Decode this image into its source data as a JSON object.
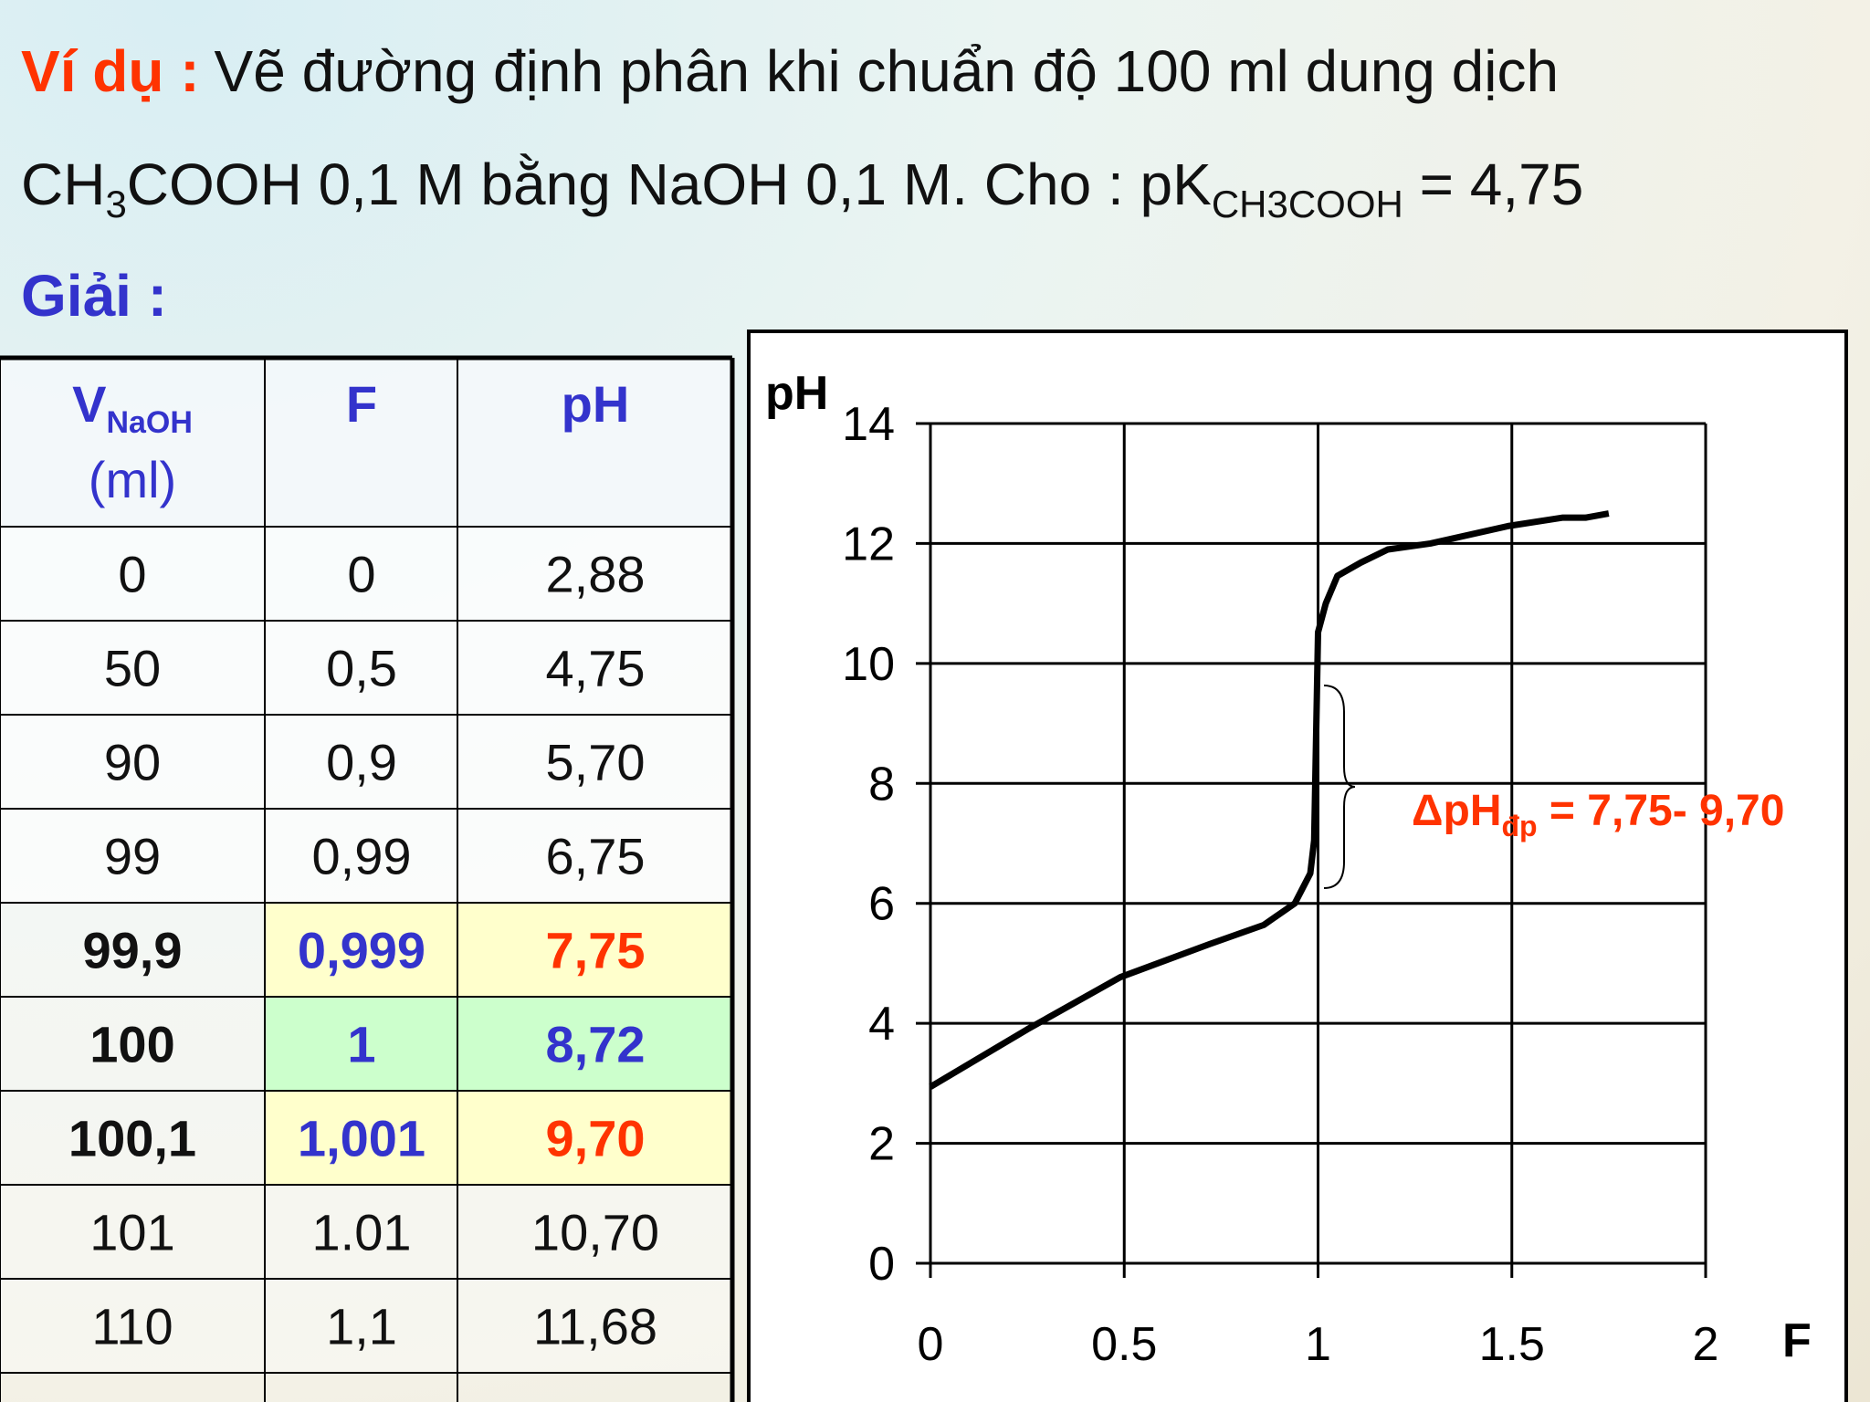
{
  "header": {
    "example_label": "Ví dụ :",
    "line1": "Vẽ đường định phân khi chuẩn độ 100 ml dung dịch",
    "line2": {
      "a": "CH",
      "a_sub": "3",
      "b": "COOH 0,1 M bằng NaOH 0,1 M. Cho : pK",
      "b_sub": "CH3COOH",
      "c": " = 4,75"
    },
    "solution_label": "Giải :"
  },
  "table": {
    "header": [
      {
        "main": "V",
        "sub": "NaOH",
        "line2": "(ml)"
      },
      {
        "main": "F"
      },
      {
        "main": "pH"
      }
    ],
    "rows": [
      {
        "cells": [
          "0",
          "0",
          "2,88"
        ]
      },
      {
        "cells": [
          "50",
          "0,5",
          "4,75"
        ]
      },
      {
        "cells": [
          "90",
          "0,9",
          "5,70"
        ]
      },
      {
        "cells": [
          "99",
          "0,99",
          "6,75"
        ]
      },
      {
        "cells": [
          "99,9",
          "0,999",
          "7,75"
        ],
        "bold": true,
        "bg": "#ffffcc",
        "colors": [
          "#111111",
          "#3333cc",
          "#ff3300"
        ]
      },
      {
        "cells": [
          "100",
          "1",
          "8,72"
        ],
        "bold": true,
        "bg": "#ccffcc",
        "colors": [
          "#111111",
          "#3333cc",
          "#3333cc"
        ]
      },
      {
        "cells": [
          "100,1",
          "1,001",
          "9,70"
        ],
        "bold": true,
        "bg": "#ffffcc",
        "colors": [
          "#111111",
          "#3333cc",
          "#ff3300"
        ]
      },
      {
        "cells": [
          "101",
          "1.01",
          "10,70"
        ]
      },
      {
        "cells": [
          "110",
          "1,1",
          "11,68"
        ]
      }
    ]
  },
  "chart_data": {
    "type": "line",
    "y_label": "pH",
    "x_label": "F",
    "x": [
      0,
      0.25,
      0.49,
      0.72,
      0.86,
      0.94,
      0.98,
      0.99,
      1.0,
      1.02,
      1.05,
      1.11,
      1.18,
      1.29,
      1.49,
      1.63,
      1.69,
      1.75
    ],
    "series": [
      {
        "color": "#000000",
        "values": [
          2.94,
          3.9,
          4.77,
          5.32,
          5.64,
          6.0,
          6.5,
          7.05,
          10.52,
          11.0,
          11.46,
          11.68,
          11.9,
          12.0,
          12.29,
          12.43,
          12.43,
          12.5
        ]
      }
    ],
    "xlim": [
      0,
      2
    ],
    "xticks": [
      0,
      0.5,
      1,
      1.5,
      2
    ],
    "ylim": [
      0,
      14
    ],
    "yticks": [
      0,
      2,
      4,
      6,
      8,
      10,
      12,
      14
    ],
    "grid": true,
    "annotation": {
      "main": "ΔpH",
      "sub": "đp",
      "rest": " = 7,75- 9,70",
      "color": "#ff3300"
    }
  }
}
